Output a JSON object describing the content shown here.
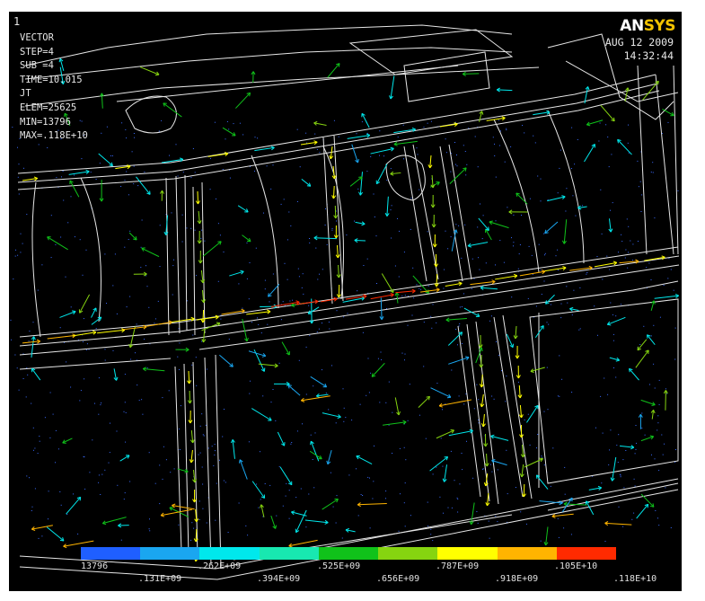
{
  "viewport": {
    "window_number": "1",
    "brand": {
      "an": "AN",
      "sys": "SYS"
    },
    "date": "AUG 12 2009",
    "time": "14:32:44",
    "info_lines": [
      "VECTOR",
      "STEP=4",
      "SUB =4",
      "TIME=10.015",
      "JT",
      "ELEM=25625",
      "MIN=13796",
      "MAX=.118E+10"
    ]
  },
  "legend": {
    "colors": [
      "#1f5fff",
      "#1aa6f0",
      "#00e8ec",
      "#18e8b0",
      "#10c21a",
      "#86d410",
      "#ffff00",
      "#ffb400",
      "#ff2a00"
    ],
    "top_labels": [
      "13796",
      ".262E+09",
      ".525E+09",
      ".787E+09",
      ".105E+10"
    ],
    "bottom_labels": [
      ".131E+09",
      ".394E+09",
      ".656E+09",
      ".918E+09",
      ".118E+10"
    ]
  }
}
